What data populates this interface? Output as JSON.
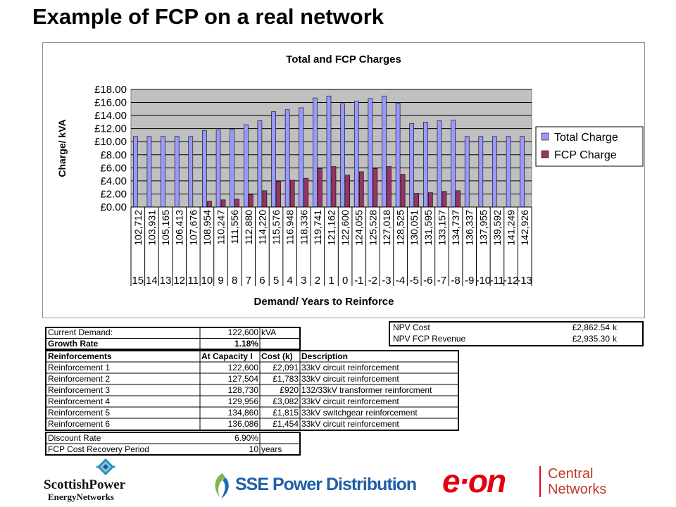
{
  "slide": {
    "title": "Example of FCP on a real network"
  },
  "chart_data": {
    "type": "bar",
    "title": "Total and FCP Charges",
    "xlabel": "Demand/ Years to Reinforce",
    "ylabel": "Charge/ kVA",
    "ylim": [
      0,
      18
    ],
    "yticks": [
      "£0.00",
      "£2.00",
      "£4.00",
      "£6.00",
      "£8.00",
      "£10.00",
      "£12.00",
      "£14.00",
      "£16.00",
      "£18.00"
    ],
    "grid": true,
    "legend_position": "right",
    "categories": [
      "102,712",
      "103,931",
      "105,165",
      "106,413",
      "107,676",
      "108,954",
      "110,247",
      "111,556",
      "112,880",
      "114,220",
      "115,576",
      "116,948",
      "118,336",
      "119,741",
      "121,162",
      "122,600",
      "124,055",
      "125,528",
      "127,018",
      "128,525",
      "130,051",
      "131,595",
      "133,157",
      "134,737",
      "136,337",
      "137,955",
      "139,592",
      "141,249",
      "142,926"
    ],
    "years": [
      "15",
      "14",
      "13",
      "12",
      "11",
      "10",
      "9",
      "8",
      "7",
      "6",
      "5",
      "4",
      "3",
      "2",
      "1",
      "0",
      "-1",
      "-2",
      "-3",
      "-4",
      "-5",
      "-6",
      "-7",
      "-8",
      "-9",
      "-10",
      "-11",
      "-12",
      "-13"
    ],
    "series": [
      {
        "name": "Total Charge",
        "color": "#9999ff",
        "values": [
          10.8,
          10.8,
          10.8,
          10.8,
          10.8,
          11.7,
          11.8,
          11.9,
          12.6,
          13.2,
          14.6,
          14.9,
          15.2,
          16.7,
          17.0,
          15.8,
          16.2,
          16.6,
          17.0,
          15.9,
          12.8,
          13.0,
          13.2,
          13.3,
          10.8,
          10.8,
          10.8,
          10.8,
          10.8
        ]
      },
      {
        "name": "FCP Charge",
        "color": "#993366",
        "values": [
          0,
          0,
          0,
          0,
          0,
          0.9,
          1.1,
          1.2,
          1.9,
          2.5,
          3.9,
          4.1,
          4.4,
          5.9,
          6.2,
          4.9,
          5.4,
          5.9,
          6.2,
          5.0,
          2.1,
          2.2,
          2.4,
          2.5,
          0,
          0,
          0,
          0,
          0
        ]
      }
    ]
  },
  "npv": {
    "rows": [
      {
        "label": "NPV Cost",
        "value": "£2,862.54",
        "unit": "k"
      },
      {
        "label": "NPV FCP Revenue",
        "value": "£2,935.30",
        "unit": "k"
      }
    ]
  },
  "inputs": {
    "current_demand": {
      "label": "Current Demand:",
      "value": "122,600",
      "unit": "kVA"
    },
    "growth_rate": {
      "label": "Growth Rate",
      "value": "1.18%"
    },
    "headers": {
      "name": "Reinforcements",
      "capacity": "At Capacity I",
      "cost": "Cost (k)",
      "desc": "Description"
    },
    "reinforcements": [
      {
        "name": "Reinforcement 1",
        "capacity": "122,600",
        "cost": "£2,091",
        "desc": "33kV circuit reinforcement"
      },
      {
        "name": "Reinforcement 2",
        "capacity": "127,504",
        "cost": "£1,783",
        "desc": "33kV circuit reinforcement"
      },
      {
        "name": "Reinforcement 3",
        "capacity": "128,730",
        "cost": "£920",
        "desc": "132/33kV transformer reinforcment"
      },
      {
        "name": "Reinforcement 4",
        "capacity": "129,956",
        "cost": "£3,082",
        "desc": "33kV circuit reinforcement"
      },
      {
        "name": "Reinforcement 5",
        "capacity": "134,860",
        "cost": "£1,815",
        "desc": "33kV switchgear reinforcement"
      },
      {
        "name": "Reinforcement 6",
        "capacity": "136,086",
        "cost": "£1,454",
        "desc": "33kV circuit reinforcement"
      }
    ],
    "discount_rate": {
      "label": "Discount Rate",
      "value": "6.90%"
    },
    "recovery_period": {
      "label": "FCP Cost Recovery Period",
      "value": "10",
      "unit": "years"
    }
  },
  "logos": {
    "scottish_power": {
      "line1": "ScottishPower",
      "line2": "EnergyNetworks"
    },
    "sse": {
      "text": "SSE Power Distribution"
    },
    "eon": {
      "brand": "e·on",
      "line1": "Central",
      "line2": "Networks"
    }
  }
}
